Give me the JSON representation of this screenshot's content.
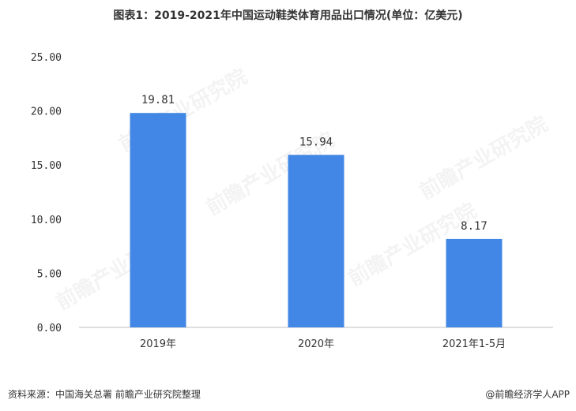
{
  "title": "图表1：2019-2021年中国运动鞋类体育用品出口情况(单位：亿美元)",
  "footer": {
    "source": "资料来源：中国海关总署 前瞻产业研究院整理",
    "brand": "@前瞻经济学人APP"
  },
  "watermark": {
    "text": "前瞻产业研究院"
  },
  "colors": {
    "bar": "#4287e6",
    "axis": "#bfbfbf",
    "text": "#333333"
  },
  "chart_data": {
    "type": "bar",
    "title": "图表1：2019-2021年中国运动鞋类体育用品出口情况(单位：亿美元)",
    "categories": [
      "2019年",
      "2020年",
      "2021年1-5月"
    ],
    "values": [
      19.81,
      15.94,
      8.17
    ],
    "value_labels": [
      "19.81",
      "15.94",
      "8.17"
    ],
    "yticks": [
      "0.00",
      "5.00",
      "10.00",
      "15.00",
      "20.00",
      "25.00"
    ],
    "ylim": [
      0,
      25
    ],
    "xlabel": "",
    "ylabel": "",
    "grid": false,
    "legend": "none"
  }
}
